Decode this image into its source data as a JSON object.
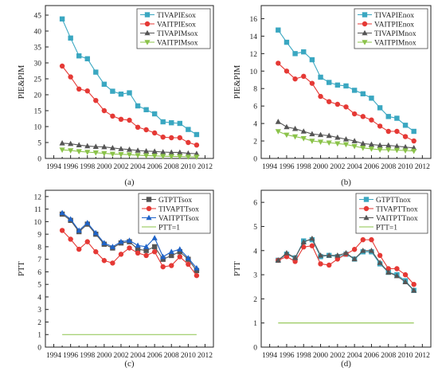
{
  "chart_data": [
    {
      "panel": "(a)",
      "type": "line",
      "title": "",
      "xlabel": "",
      "ylabel": "PIE&PIM",
      "xlim": [
        1993,
        2013
      ],
      "ylim": [
        0,
        48
      ],
      "xticks": [
        1994,
        1996,
        1998,
        2000,
        2002,
        2004,
        2006,
        2008,
        2010,
        2012
      ],
      "yticks": [
        0,
        5,
        10,
        15,
        20,
        25,
        30,
        35,
        40,
        45
      ],
      "legend_position": "top-right",
      "grid": false,
      "x": [
        1995,
        1996,
        1997,
        1998,
        1999,
        2000,
        2001,
        2002,
        2003,
        2004,
        2005,
        2006,
        2007,
        2008,
        2009,
        2010,
        2011
      ],
      "series": [
        {
          "name": "TIVAPIEsox",
          "color": "#3aa7c1",
          "marker": "square",
          "values": [
            43.8,
            37.8,
            32.2,
            31.3,
            27.1,
            23.3,
            21.1,
            20.2,
            20.6,
            16.5,
            15.3,
            14.0,
            11.5,
            11.2,
            11.0,
            9.1,
            7.5
          ]
        },
        {
          "name": "VAITPIEsox",
          "color": "#e53935",
          "marker": "circle",
          "values": [
            29.0,
            25.6,
            21.8,
            21.2,
            18.2,
            15.0,
            13.3,
            12.3,
            12.0,
            9.8,
            9.0,
            8.0,
            6.7,
            6.5,
            6.5,
            5.0,
            4.2
          ]
        },
        {
          "name": "TIVAPIMsox",
          "color": "#555555",
          "marker": "triangle-up",
          "values": [
            4.8,
            4.6,
            4.2,
            3.9,
            3.7,
            3.6,
            3.3,
            3.0,
            2.8,
            2.5,
            2.3,
            2.2,
            2.0,
            1.9,
            1.9,
            1.6,
            1.5
          ]
        },
        {
          "name": "VAITPIMsox",
          "color": "#8bc34a",
          "marker": "triangle-down",
          "values": [
            2.7,
            2.5,
            2.2,
            2.0,
            1.8,
            1.6,
            1.4,
            1.3,
            1.2,
            1.0,
            0.9,
            0.8,
            0.7,
            0.65,
            0.6,
            0.5,
            0.45
          ]
        }
      ],
      "caption": "(a)"
    },
    {
      "panel": "(b)",
      "type": "line",
      "title": "",
      "xlabel": "",
      "ylabel": "PIE&PIM",
      "xlim": [
        1993,
        2013
      ],
      "ylim": [
        0,
        17.5
      ],
      "xticks": [
        1994,
        1996,
        1998,
        2000,
        2002,
        2004,
        2006,
        2008,
        2010,
        2012
      ],
      "yticks": [
        0,
        2,
        4,
        6,
        8,
        10,
        12,
        14,
        16
      ],
      "legend_position": "top-right",
      "grid": false,
      "x": [
        1995,
        1996,
        1997,
        1998,
        1999,
        2000,
        2001,
        2002,
        2003,
        2004,
        2005,
        2006,
        2007,
        2008,
        2009,
        2010,
        2011
      ],
      "series": [
        {
          "name": "TIVAPIEnox",
          "color": "#3aa7c1",
          "marker": "square",
          "values": [
            14.7,
            13.3,
            12.0,
            12.2,
            11.3,
            9.3,
            8.7,
            8.4,
            8.3,
            7.8,
            7.4,
            6.9,
            5.8,
            4.8,
            4.6,
            3.8,
            3.1
          ]
        },
        {
          "name": "VAITPIEnox",
          "color": "#e53935",
          "marker": "circle",
          "values": [
            10.9,
            10.0,
            9.1,
            9.4,
            8.6,
            7.1,
            6.5,
            6.2,
            5.9,
            5.1,
            4.8,
            4.4,
            3.7,
            3.1,
            3.1,
            2.5,
            2.0
          ]
        },
        {
          "name": "TIVAPIMnox",
          "color": "#555555",
          "marker": "triangle-up",
          "values": [
            4.2,
            3.6,
            3.4,
            3.1,
            2.8,
            2.7,
            2.6,
            2.4,
            2.2,
            2.0,
            1.7,
            1.6,
            1.5,
            1.5,
            1.4,
            1.3,
            1.2
          ]
        },
        {
          "name": "VAITPIMnox",
          "color": "#8bc34a",
          "marker": "triangle-down",
          "values": [
            3.1,
            2.7,
            2.5,
            2.3,
            2.0,
            1.9,
            1.8,
            1.7,
            1.6,
            1.4,
            1.2,
            1.1,
            1.0,
            1.0,
            0.95,
            0.9,
            0.85
          ]
        }
      ],
      "caption": "(b)"
    },
    {
      "panel": "(c)",
      "type": "line",
      "title": "",
      "xlabel": "",
      "ylabel": "PTT",
      "xlim": [
        1993,
        2013
      ],
      "ylim": [
        0,
        12.5
      ],
      "xticks": [
        1994,
        1996,
        1998,
        2000,
        2002,
        2004,
        2006,
        2008,
        2010,
        2012
      ],
      "yticks": [
        0,
        1,
        2,
        3,
        4,
        5,
        6,
        7,
        8,
        9,
        10,
        11,
        12
      ],
      "legend_position": "top-right",
      "grid": false,
      "x": [
        1995,
        1996,
        1997,
        1998,
        1999,
        2000,
        2001,
        2002,
        2003,
        2004,
        2005,
        2006,
        2007,
        2008,
        2009,
        2010,
        2011
      ],
      "series": [
        {
          "name": "GTPTTsox",
          "color": "#555555",
          "marker": "square",
          "values": [
            10.6,
            10.1,
            9.2,
            9.8,
            9.0,
            8.2,
            7.9,
            8.3,
            8.4,
            7.8,
            7.7,
            8.0,
            7.0,
            7.3,
            7.6,
            7.0,
            6.1
          ]
        },
        {
          "name": "TIVAPTTsox",
          "color": "#e53935",
          "marker": "circle",
          "values": [
            9.3,
            8.6,
            7.8,
            8.4,
            7.6,
            6.9,
            6.7,
            7.4,
            7.9,
            7.5,
            7.3,
            7.6,
            6.4,
            6.5,
            7.2,
            6.6,
            5.7
          ]
        },
        {
          "name": "VAITPTTsox",
          "color": "#1e63c8",
          "marker": "triangle-up",
          "values": [
            10.7,
            10.2,
            9.3,
            9.9,
            9.1,
            8.3,
            8.0,
            8.4,
            8.5,
            8.1,
            8.0,
            8.7,
            7.2,
            7.6,
            7.8,
            7.1,
            6.3
          ]
        },
        {
          "name": "PTT=1",
          "color": "#8bc34a",
          "marker": "none",
          "values": [
            1,
            1,
            1,
            1,
            1,
            1,
            1,
            1,
            1,
            1,
            1,
            1,
            1,
            1,
            1,
            1,
            1
          ]
        }
      ],
      "caption": "(c)"
    },
    {
      "panel": "(d)",
      "type": "line",
      "title": "",
      "xlabel": "",
      "ylabel": "PTT",
      "xlim": [
        1993,
        2013
      ],
      "ylim": [
        0,
        6.5
      ],
      "xticks": [
        1994,
        1996,
        1998,
        2000,
        2002,
        2004,
        2006,
        2008,
        2010,
        2012
      ],
      "yticks": [
        0,
        1,
        2,
        3,
        4,
        5,
        6
      ],
      "legend_position": "top-right",
      "grid": false,
      "x": [
        1995,
        1996,
        1997,
        1998,
        1999,
        2000,
        2001,
        2002,
        2003,
        2004,
        2005,
        2006,
        2007,
        2008,
        2009,
        2010,
        2011
      ],
      "series": [
        {
          "name": "GTPTTnox",
          "color": "#3aa7c1",
          "marker": "square",
          "values": [
            3.6,
            3.85,
            3.7,
            4.4,
            4.45,
            3.75,
            3.8,
            3.75,
            3.85,
            3.65,
            3.95,
            3.95,
            3.45,
            3.1,
            3.0,
            2.75,
            2.35
          ]
        },
        {
          "name": "TIVAPTTnox",
          "color": "#e53935",
          "marker": "circle",
          "values": [
            3.6,
            3.75,
            3.55,
            4.15,
            4.2,
            3.45,
            3.4,
            3.65,
            3.85,
            4.05,
            4.45,
            4.45,
            3.8,
            3.25,
            3.25,
            3.0,
            2.6
          ]
        },
        {
          "name": "VAITPTTnox",
          "color": "#555555",
          "marker": "triangle-up",
          "values": [
            3.6,
            3.9,
            3.7,
            4.35,
            4.5,
            3.8,
            3.8,
            3.8,
            3.9,
            3.65,
            4.0,
            4.0,
            3.5,
            3.1,
            2.95,
            2.7,
            2.35
          ]
        },
        {
          "name": "PTT=1",
          "color": "#8bc34a",
          "marker": "none",
          "values": [
            1,
            1,
            1,
            1,
            1,
            1,
            1,
            1,
            1,
            1,
            1,
            1,
            1,
            1,
            1,
            1,
            1
          ]
        }
      ],
      "caption": "(d)"
    }
  ]
}
